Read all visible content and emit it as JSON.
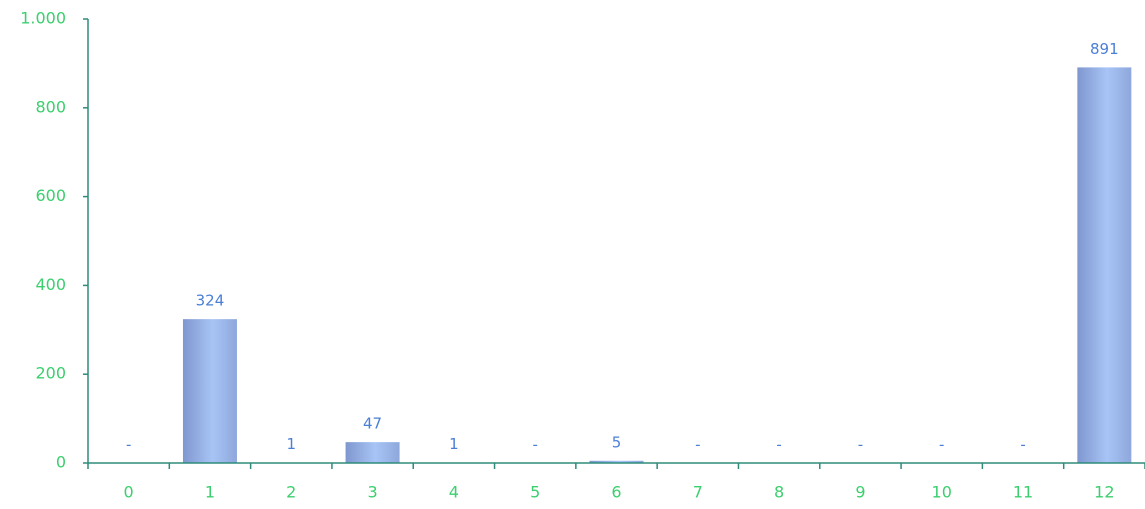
{
  "chart_data": {
    "type": "bar",
    "categories": [
      "0",
      "1",
      "2",
      "3",
      "4",
      "5",
      "6",
      "7",
      "8",
      "9",
      "10",
      "11",
      "12"
    ],
    "values": [
      0,
      324,
      1,
      47,
      1,
      0,
      5,
      0,
      0,
      0,
      0,
      0,
      891
    ],
    "value_labels": [
      "-",
      "324",
      "1",
      "47",
      "1",
      "-",
      "5",
      "-",
      "-",
      "-",
      "-",
      "-",
      "891"
    ],
    "color": "#a8c4f5",
    "ylim": [
      0,
      1000
    ],
    "yticks": [
      0,
      200,
      400,
      600,
      800,
      {
        "value": 1000,
        "label": "1.000"
      }
    ],
    "grid": false
  }
}
